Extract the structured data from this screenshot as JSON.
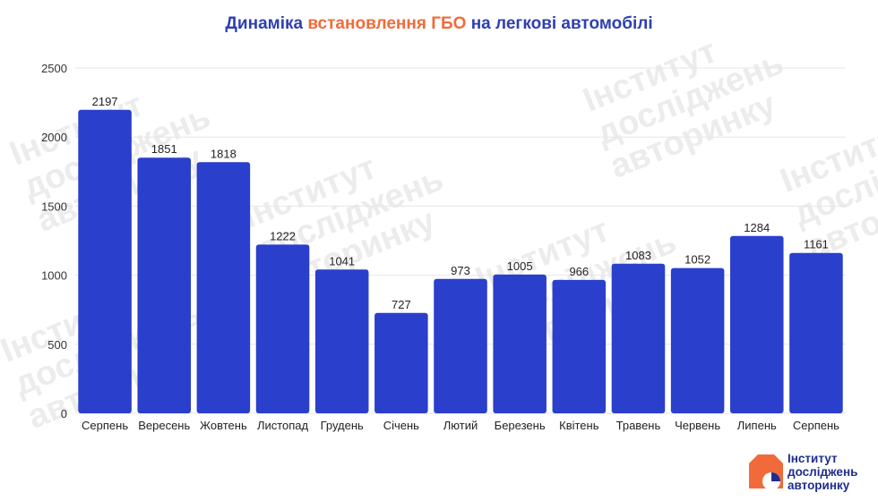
{
  "title": {
    "part1": "Динаміка",
    "part2": "встановлення ГБО",
    "part3": "на легкові автомобілі"
  },
  "watermark": "Інститут\nдосліджень\nавторинку",
  "logo": {
    "line1": "Інститут",
    "line2": "досліджень",
    "line3": "авторинку"
  },
  "colors": {
    "bar": "#2a3fcb",
    "title": "#2f3fb0",
    "accent": "#f26a3a",
    "grid": "#e6e6e6",
    "logo_orange": "#f26a3a",
    "logo_blue": "#1e2d8f"
  },
  "chart_data": {
    "type": "bar",
    "categories": [
      "Серпень",
      "Вересень",
      "Жовтень",
      "Листопад",
      "Грудень",
      "Січень",
      "Лютий",
      "Березень",
      "Квітень",
      "Травень",
      "Червень",
      "Липень",
      "Серпень"
    ],
    "values": [
      2197,
      1851,
      1818,
      1222,
      1041,
      727,
      973,
      1005,
      966,
      1083,
      1052,
      1284,
      1161
    ],
    "ylim": [
      0,
      2500
    ],
    "yticks": [
      0,
      500,
      1000,
      1500,
      2000,
      2500
    ],
    "grid": true,
    "data_labels": true
  }
}
